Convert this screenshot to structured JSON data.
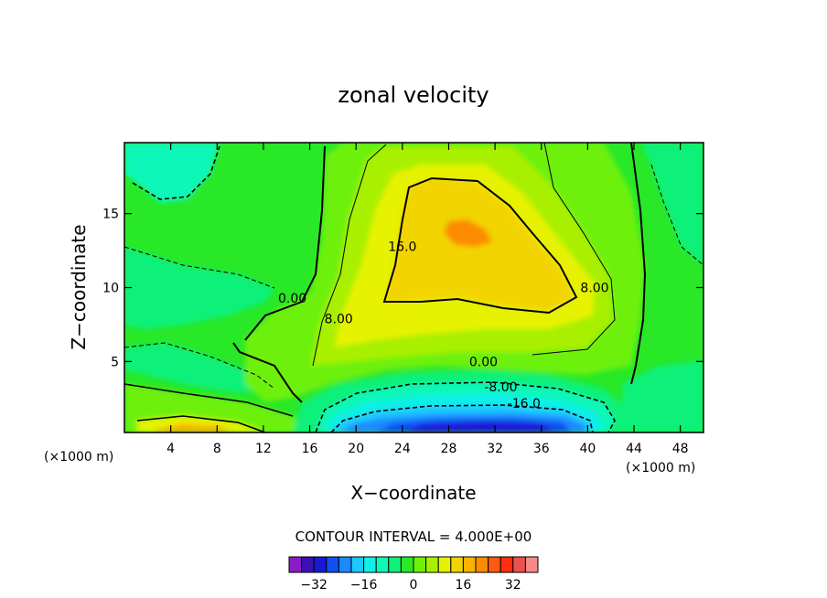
{
  "chart_data": {
    "type": "heatmap",
    "title": "zonal velocity",
    "xlabel": "X−coordinate",
    "ylabel": "Z−coordinate",
    "x_unit": "(×1000 m)",
    "y_unit": "(×1000 m)",
    "xlim": [
      0,
      50
    ],
    "ylim": [
      0.2,
      19.8
    ],
    "x_ticks": [
      4,
      8,
      12,
      16,
      20,
      24,
      28,
      32,
      36,
      40,
      44,
      48
    ],
    "y_ticks": [
      5,
      10,
      15
    ],
    "contour_interval_text": "CONTOUR INTERVAL = 4.000E+00",
    "contour_interval": 4,
    "contour_labels": [
      {
        "text": "0.00",
        "x": 14.5,
        "z": 9.1
      },
      {
        "text": "8.00",
        "x": 18.5,
        "z": 7.7
      },
      {
        "text": "16.0",
        "x": 24.0,
        "z": 12.6
      },
      {
        "text": "8.00",
        "x": 40.6,
        "z": 9.8
      },
      {
        "text": "0.00",
        "x": 31.0,
        "z": 4.8
      },
      {
        "text": "-8.00",
        "x": 32.5,
        "z": 3.1
      },
      {
        "text": "-16.0",
        "x": 34.5,
        "z": 2.0
      }
    ],
    "colorbar": {
      "levels": [
        -36,
        -32,
        -28,
        -24,
        -20,
        -16,
        -12,
        -8,
        -4,
        0,
        4,
        8,
        12,
        16,
        20,
        24,
        28,
        32,
        36
      ],
      "tick_labels": [
        "−32",
        "−16",
        "0",
        "16",
        "32"
      ],
      "tick_values": [
        -32,
        -16,
        0,
        16,
        32
      ],
      "colors": [
        "#8a1cc4",
        "#3c10b4",
        "#1a18d8",
        "#1050f0",
        "#1b8aff",
        "#1cc8ff",
        "#10f0e6",
        "#10f8b8",
        "#10f07a",
        "#28e828",
        "#6ef00c",
        "#a8f000",
        "#e6f200",
        "#f2d400",
        "#f9b200",
        "#fb8b00",
        "#ff5a10",
        "#fc2f10",
        "#ee5050",
        "#f58a8a"
      ]
    }
  }
}
